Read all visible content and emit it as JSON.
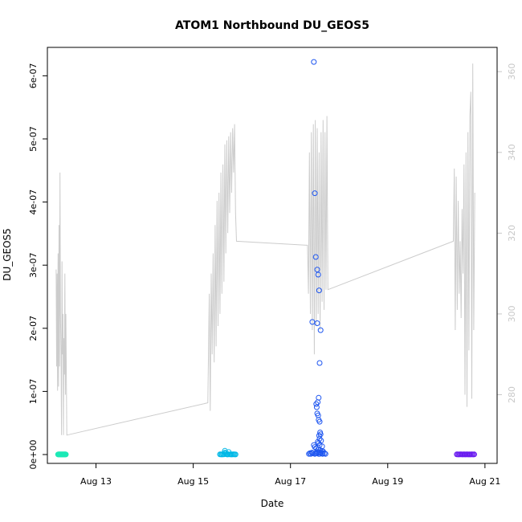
{
  "chart_data": {
    "type": "scatter",
    "title": "ATOM1 Northbound DU_GEOS5",
    "xlabel": "Date",
    "ylabel": "DU_GEOS5",
    "x_unit": "day of August",
    "xlim": [
      12.0,
      21.25
    ],
    "ylim": [
      -1.4e-08,
      6.45e-07
    ],
    "y2lim": [
      263,
      366
    ],
    "x_ticks": [
      {
        "value": 13,
        "label": "Aug 13"
      },
      {
        "value": 15,
        "label": "Aug 15"
      },
      {
        "value": 17,
        "label": "Aug 17"
      },
      {
        "value": 19,
        "label": "Aug 19"
      },
      {
        "value": 21,
        "label": "Aug 21"
      }
    ],
    "y_ticks": [
      {
        "value": 0,
        "label": "0e+00"
      },
      {
        "value": 1e-07,
        "label": "1e-07"
      },
      {
        "value": 2e-07,
        "label": "2e-07"
      },
      {
        "value": 3e-07,
        "label": "3e-07"
      },
      {
        "value": 4e-07,
        "label": "4e-07"
      },
      {
        "value": 5e-07,
        "label": "5e-07"
      },
      {
        "value": 6e-07,
        "label": "6e-07"
      }
    ],
    "y2_ticks": [
      {
        "value": 280,
        "label": "280"
      },
      {
        "value": 300,
        "label": "300"
      },
      {
        "value": 320,
        "label": "320"
      },
      {
        "value": 340,
        "label": "340"
      },
      {
        "value": 360,
        "label": "360"
      }
    ],
    "colors": {
      "line": "#cccccc",
      "right_axis": "#c8c8c8",
      "frame": "#000000"
    },
    "series": [
      {
        "color": "#1de9b6",
        "x": [
          12.22,
          12.23,
          12.24,
          12.25,
          12.26,
          12.27,
          12.28,
          12.29,
          12.3,
          12.31,
          12.32,
          12.33,
          12.34,
          12.35,
          12.36,
          12.37,
          12.38
        ],
        "y": [
          1e-10,
          2e-10,
          1e-10,
          3e-10,
          2e-10,
          1e-10,
          2e-10,
          1e-10,
          3e-10,
          1e-10,
          2e-10,
          1e-10,
          2e-10,
          1e-10,
          3e-10,
          2e-10,
          1e-10
        ]
      },
      {
        "color": "#00b8e6",
        "x": [
          15.55,
          15.57,
          15.59,
          15.61,
          15.63,
          15.65,
          15.67,
          15.69,
          15.71,
          15.73,
          15.75,
          15.77,
          15.79,
          15.81,
          15.83,
          15.85,
          15.87,
          15.65,
          15.7
        ],
        "y": [
          2e-10,
          3e-10,
          1e-10,
          4e-10,
          2e-10,
          6e-09,
          2e-09,
          3e-10,
          1e-10,
          4e-09,
          2e-10,
          3e-10,
          1e-10,
          2e-10,
          4e-10,
          2e-10,
          1e-10,
          3e-09,
          1e-09
        ]
      },
      {
        "color": "#1e56f0",
        "x": [
          17.48,
          17.5,
          17.52,
          17.55,
          17.57,
          17.59,
          17.55,
          17.62,
          17.6,
          17.58,
          17.56,
          17.53,
          17.54,
          17.55,
          17.57,
          17.58,
          17.6,
          17.61,
          17.62,
          17.59,
          17.6,
          17.63,
          17.56,
          17.58,
          17.6,
          17.65,
          17.5,
          17.53,
          17.57,
          17.61,
          17.64,
          17.67,
          17.55,
          17.58,
          17.62,
          17.66,
          17.52,
          17.6,
          17.38,
          17.4,
          17.42,
          17.44,
          17.46,
          17.5,
          17.54,
          17.58,
          17.62,
          17.66,
          17.7,
          17.72,
          17.45,
          17.48
        ],
        "y": [
          6.22e-07,
          4.14e-07,
          3.13e-07,
          2.93e-07,
          2.85e-07,
          2.6e-07,
          2.08e-07,
          1.97e-07,
          1.45e-07,
          9e-08,
          8.3e-08,
          8e-08,
          7.5e-08,
          6.5e-08,
          6.2e-08,
          5.5e-08,
          5.2e-08,
          3.5e-08,
          3.2e-08,
          3e-08,
          2.5e-08,
          2.2e-08,
          2e-08,
          1.8e-08,
          1.5e-08,
          1.3e-08,
          1.2e-08,
          1e-08,
          8e-09,
          7e-09,
          6e-09,
          5e-09,
          4e-09,
          3e-09,
          3e-09,
          2e-09,
          2e-09,
          1e-09,
          1e-09,
          2e-09,
          1e-09,
          3e-09,
          2e-09,
          1e-09,
          2e-09,
          1e-09,
          3e-09,
          1e-09,
          2e-09,
          1e-09,
          2.1e-07,
          1.5e-08
        ]
      },
      {
        "color": "#6a1cf0",
        "x": [
          20.42,
          20.44,
          20.46,
          20.48,
          20.5,
          20.52,
          20.54,
          20.56,
          20.58,
          20.6,
          20.62,
          20.64,
          20.66,
          20.68,
          20.7,
          20.72,
          20.74,
          20.76,
          20.78
        ],
        "y": [
          2e-10,
          3e-10,
          1e-10,
          2e-10,
          4e-10,
          2e-10,
          1e-10,
          3e-10,
          2e-10,
          1e-10,
          2e-10,
          3e-10,
          1e-10,
          2e-10,
          1e-10,
          3e-10,
          2e-10,
          1e-10,
          2e-10
        ]
      }
    ],
    "line_series": {
      "axis": "right",
      "color": "#cccccc",
      "x": [
        12.18,
        12.19,
        12.2,
        12.21,
        12.22,
        12.23,
        12.24,
        12.25,
        12.26,
        12.27,
        12.28,
        12.29,
        12.3,
        12.31,
        12.32,
        12.33,
        12.34,
        12.35,
        12.36,
        12.37,
        12.38,
        12.4,
        15.3,
        15.33,
        15.35,
        15.37,
        15.39,
        15.41,
        15.43,
        15.45,
        15.47,
        15.49,
        15.51,
        15.53,
        15.55,
        15.57,
        15.59,
        15.61,
        15.63,
        15.65,
        15.67,
        15.69,
        15.71,
        15.73,
        15.75,
        15.77,
        15.79,
        15.81,
        15.83,
        15.85,
        15.87,
        15.89,
        17.35,
        17.37,
        17.39,
        17.41,
        17.43,
        17.45,
        17.47,
        17.49,
        17.51,
        17.53,
        17.55,
        17.57,
        17.59,
        17.61,
        17.63,
        17.65,
        17.67,
        17.69,
        17.71,
        17.73,
        17.75,
        17.77,
        20.35,
        20.37,
        20.39,
        20.41,
        20.43,
        20.45,
        20.47,
        20.49,
        20.51,
        20.53,
        20.55,
        20.57,
        20.59,
        20.61,
        20.63,
        20.65,
        20.67,
        20.69,
        20.71,
        20.73,
        20.75,
        20.77,
        20.79
      ],
      "y": [
        311,
        287,
        310,
        281,
        315,
        282,
        322,
        287,
        335,
        300,
        290,
        270,
        313,
        290,
        300,
        270,
        294,
        285,
        310,
        280,
        300,
        270,
        278,
        305,
        276,
        310,
        290,
        315,
        288,
        322,
        292,
        328,
        297,
        330,
        300,
        335,
        305,
        337,
        308,
        342,
        315,
        343,
        320,
        344,
        325,
        345,
        330,
        346,
        335,
        347,
        325,
        318,
        317,
        305,
        340,
        300,
        345,
        296,
        347,
        290,
        348,
        297,
        346,
        300,
        340,
        296,
        345,
        303,
        348,
        301,
        345,
        306,
        349,
        306,
        318,
        336,
        296,
        334,
        301,
        328,
        305,
        318,
        299,
        326,
        310,
        337,
        280,
        340,
        277,
        345,
        291,
        349,
        355,
        279,
        362,
        296,
        330
      ]
    }
  }
}
